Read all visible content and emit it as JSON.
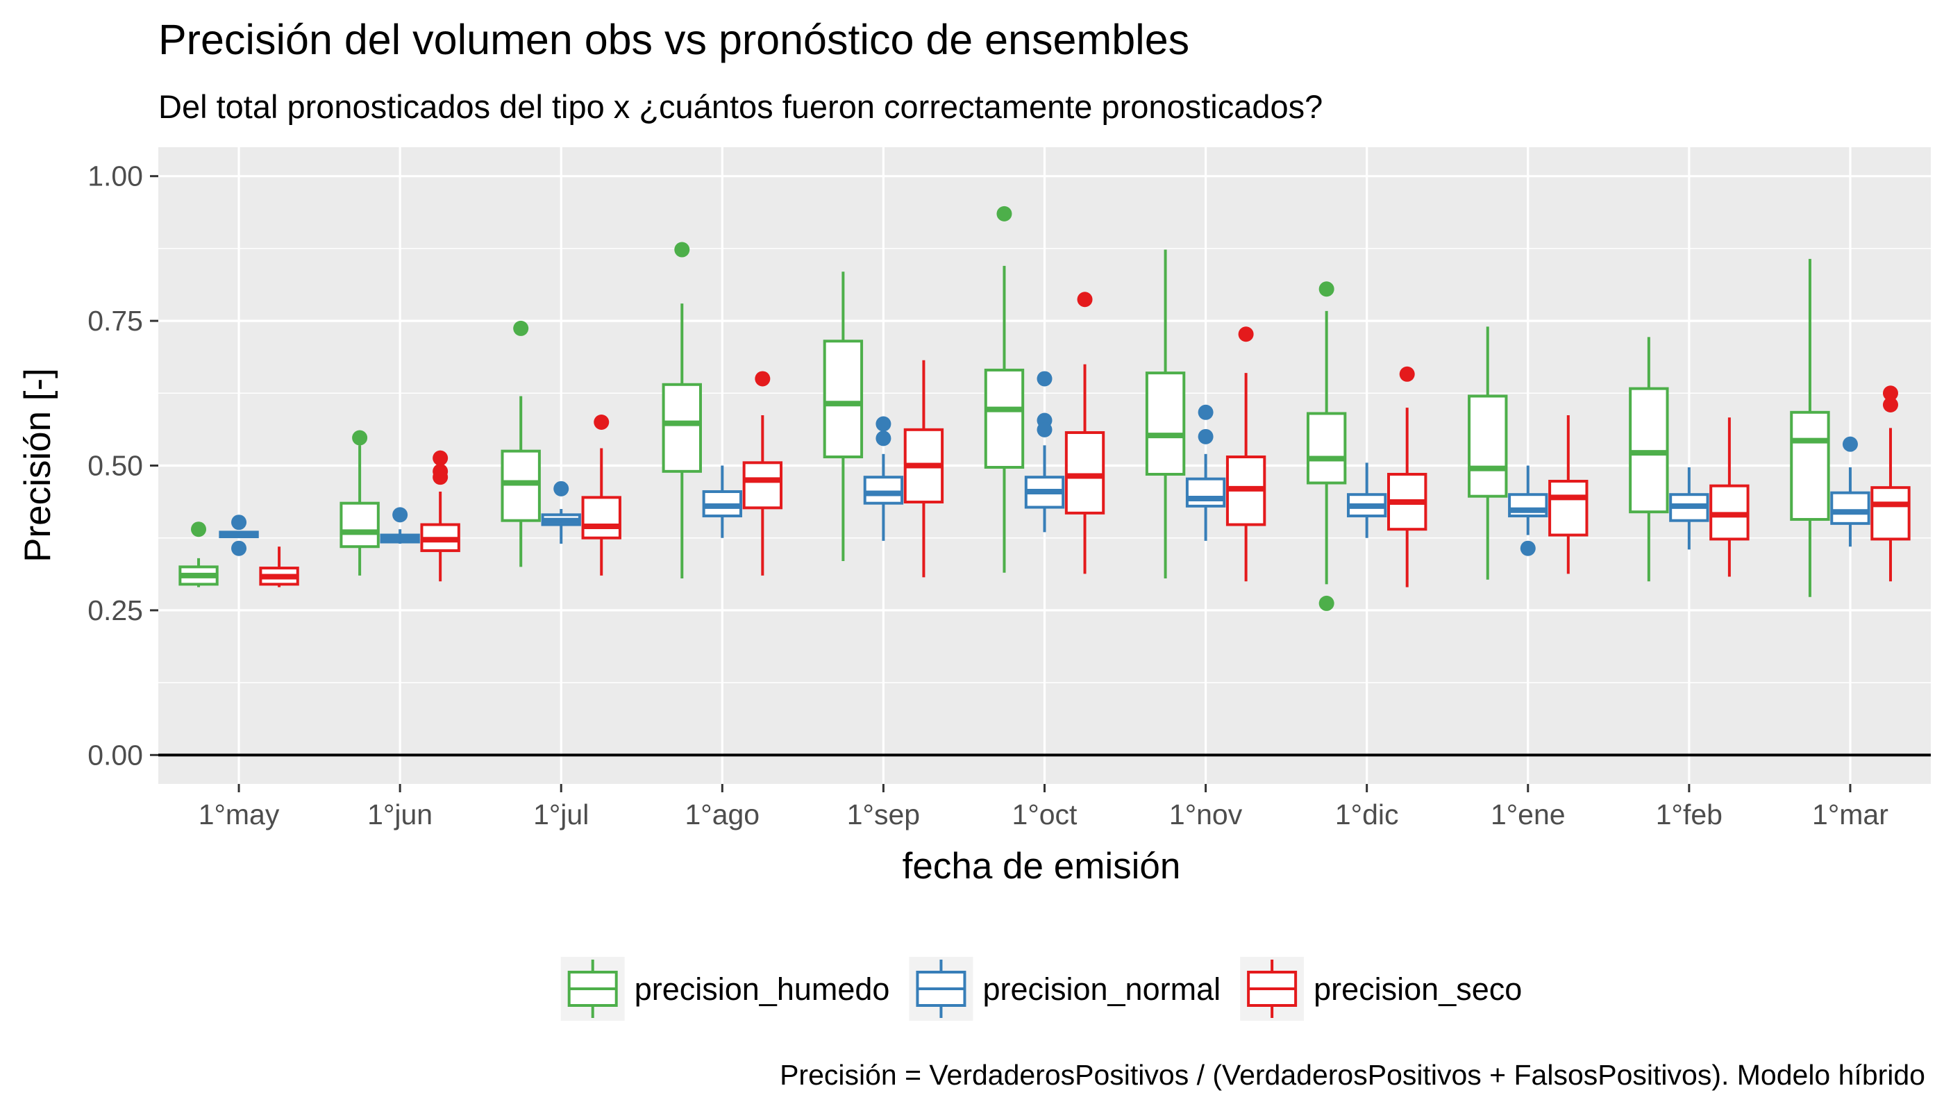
{
  "chart_data": {
    "type": "boxplot",
    "title": "Precisión del volumen obs vs pronóstico de ensembles",
    "subtitle": "Del total pronosticados del tipo x ¿cuántos fueron correctamente pronosticados?",
    "xlabel": "fecha de emisión",
    "ylabel": "Precisión [-]",
    "caption": "Precisión = VerdaderosPositivos / (VerdaderosPositivos + FalsosPositivos). Modelo híbrido",
    "ylim": [
      -0.05,
      1.05
    ],
    "yticks": [
      0.0,
      0.25,
      0.5,
      0.75,
      1.0
    ],
    "ytick_labels": [
      "0.00",
      "0.25",
      "0.50",
      "0.75",
      "1.00"
    ],
    "reference_line_y": 0.0,
    "categories": [
      "1°may",
      "1°jun",
      "1°jul",
      "1°ago",
      "1°sep",
      "1°oct",
      "1°nov",
      "1°dic",
      "1°ene",
      "1°feb",
      "1°mar"
    ],
    "legend_position": "bottom",
    "panel_background": "#ebebeb",
    "grid": true,
    "series": [
      {
        "name": "precision_humedo",
        "color": "#4daf4a",
        "boxes": [
          {
            "min": 0.29,
            "q1": 0.295,
            "median": 0.31,
            "q3": 0.325,
            "max": 0.34,
            "outliers": [
              0.39
            ]
          },
          {
            "min": 0.31,
            "q1": 0.36,
            "median": 0.385,
            "q3": 0.435,
            "max": 0.535,
            "outliers": [
              0.548
            ]
          },
          {
            "min": 0.325,
            "q1": 0.405,
            "median": 0.47,
            "q3": 0.525,
            "max": 0.62,
            "outliers": [
              0.737
            ]
          },
          {
            "min": 0.305,
            "q1": 0.49,
            "median": 0.573,
            "q3": 0.64,
            "max": 0.78,
            "outliers": [
              0.873
            ]
          },
          {
            "min": 0.335,
            "q1": 0.515,
            "median": 0.607,
            "q3": 0.715,
            "max": 0.835,
            "outliers": []
          },
          {
            "min": 0.315,
            "q1": 0.497,
            "median": 0.597,
            "q3": 0.665,
            "max": 0.845,
            "outliers": [
              0.935
            ]
          },
          {
            "min": 0.305,
            "q1": 0.485,
            "median": 0.552,
            "q3": 0.66,
            "max": 0.873,
            "outliers": []
          },
          {
            "min": 0.295,
            "q1": 0.47,
            "median": 0.512,
            "q3": 0.59,
            "max": 0.767,
            "outliers": [
              0.805,
              0.262
            ]
          },
          {
            "min": 0.303,
            "q1": 0.447,
            "median": 0.495,
            "q3": 0.62,
            "max": 0.74,
            "outliers": []
          },
          {
            "min": 0.3,
            "q1": 0.42,
            "median": 0.522,
            "q3": 0.633,
            "max": 0.722,
            "outliers": []
          },
          {
            "min": 0.273,
            "q1": 0.407,
            "median": 0.543,
            "q3": 0.592,
            "max": 0.857,
            "outliers": []
          }
        ]
      },
      {
        "name": "precision_normal",
        "color": "#377eb8",
        "boxes": [
          {
            "min": 0.375,
            "q1": 0.377,
            "median": 0.38,
            "q3": 0.385,
            "max": 0.387,
            "outliers": [
              0.402,
              0.357
            ]
          },
          {
            "min": 0.365,
            "q1": 0.368,
            "median": 0.375,
            "q3": 0.38,
            "max": 0.39,
            "outliers": [
              0.415
            ]
          },
          {
            "min": 0.365,
            "q1": 0.398,
            "median": 0.405,
            "q3": 0.415,
            "max": 0.425,
            "outliers": [
              0.46
            ]
          },
          {
            "min": 0.375,
            "q1": 0.413,
            "median": 0.43,
            "q3": 0.455,
            "max": 0.5,
            "outliers": []
          },
          {
            "min": 0.37,
            "q1": 0.435,
            "median": 0.452,
            "q3": 0.48,
            "max": 0.52,
            "outliers": [
              0.572,
              0.547
            ]
          },
          {
            "min": 0.385,
            "q1": 0.428,
            "median": 0.455,
            "q3": 0.48,
            "max": 0.535,
            "outliers": [
              0.65,
              0.578,
              0.562
            ]
          },
          {
            "min": 0.37,
            "q1": 0.43,
            "median": 0.443,
            "q3": 0.477,
            "max": 0.52,
            "outliers": [
              0.592,
              0.55
            ]
          },
          {
            "min": 0.375,
            "q1": 0.413,
            "median": 0.43,
            "q3": 0.45,
            "max": 0.505,
            "outliers": []
          },
          {
            "min": 0.38,
            "q1": 0.413,
            "median": 0.423,
            "q3": 0.45,
            "max": 0.5,
            "outliers": [
              0.357
            ]
          },
          {
            "min": 0.355,
            "q1": 0.405,
            "median": 0.43,
            "q3": 0.45,
            "max": 0.497,
            "outliers": []
          },
          {
            "min": 0.36,
            "q1": 0.4,
            "median": 0.42,
            "q3": 0.453,
            "max": 0.497,
            "outliers": [
              0.537
            ]
          }
        ]
      },
      {
        "name": "precision_seco",
        "color": "#e41a1c",
        "boxes": [
          {
            "min": 0.29,
            "q1": 0.295,
            "median": 0.308,
            "q3": 0.323,
            "max": 0.36,
            "outliers": []
          },
          {
            "min": 0.3,
            "q1": 0.353,
            "median": 0.372,
            "q3": 0.398,
            "max": 0.455,
            "outliers": [
              0.513,
              0.49,
              0.48
            ]
          },
          {
            "min": 0.31,
            "q1": 0.375,
            "median": 0.395,
            "q3": 0.445,
            "max": 0.53,
            "outliers": [
              0.575
            ]
          },
          {
            "min": 0.31,
            "q1": 0.427,
            "median": 0.475,
            "q3": 0.505,
            "max": 0.587,
            "outliers": [
              0.65
            ]
          },
          {
            "min": 0.307,
            "q1": 0.437,
            "median": 0.5,
            "q3": 0.562,
            "max": 0.682,
            "outliers": []
          },
          {
            "min": 0.313,
            "q1": 0.418,
            "median": 0.482,
            "q3": 0.557,
            "max": 0.675,
            "outliers": [
              0.787
            ]
          },
          {
            "min": 0.3,
            "q1": 0.398,
            "median": 0.46,
            "q3": 0.515,
            "max": 0.66,
            "outliers": [
              0.727
            ]
          },
          {
            "min": 0.29,
            "q1": 0.39,
            "median": 0.437,
            "q3": 0.485,
            "max": 0.6,
            "outliers": [
              0.658
            ]
          },
          {
            "min": 0.313,
            "q1": 0.38,
            "median": 0.445,
            "q3": 0.473,
            "max": 0.587,
            "outliers": []
          },
          {
            "min": 0.308,
            "q1": 0.373,
            "median": 0.415,
            "q3": 0.465,
            "max": 0.583,
            "outliers": []
          },
          {
            "min": 0.3,
            "q1": 0.373,
            "median": 0.433,
            "q3": 0.462,
            "max": 0.565,
            "outliers": [
              0.625,
              0.605
            ]
          }
        ]
      }
    ]
  }
}
